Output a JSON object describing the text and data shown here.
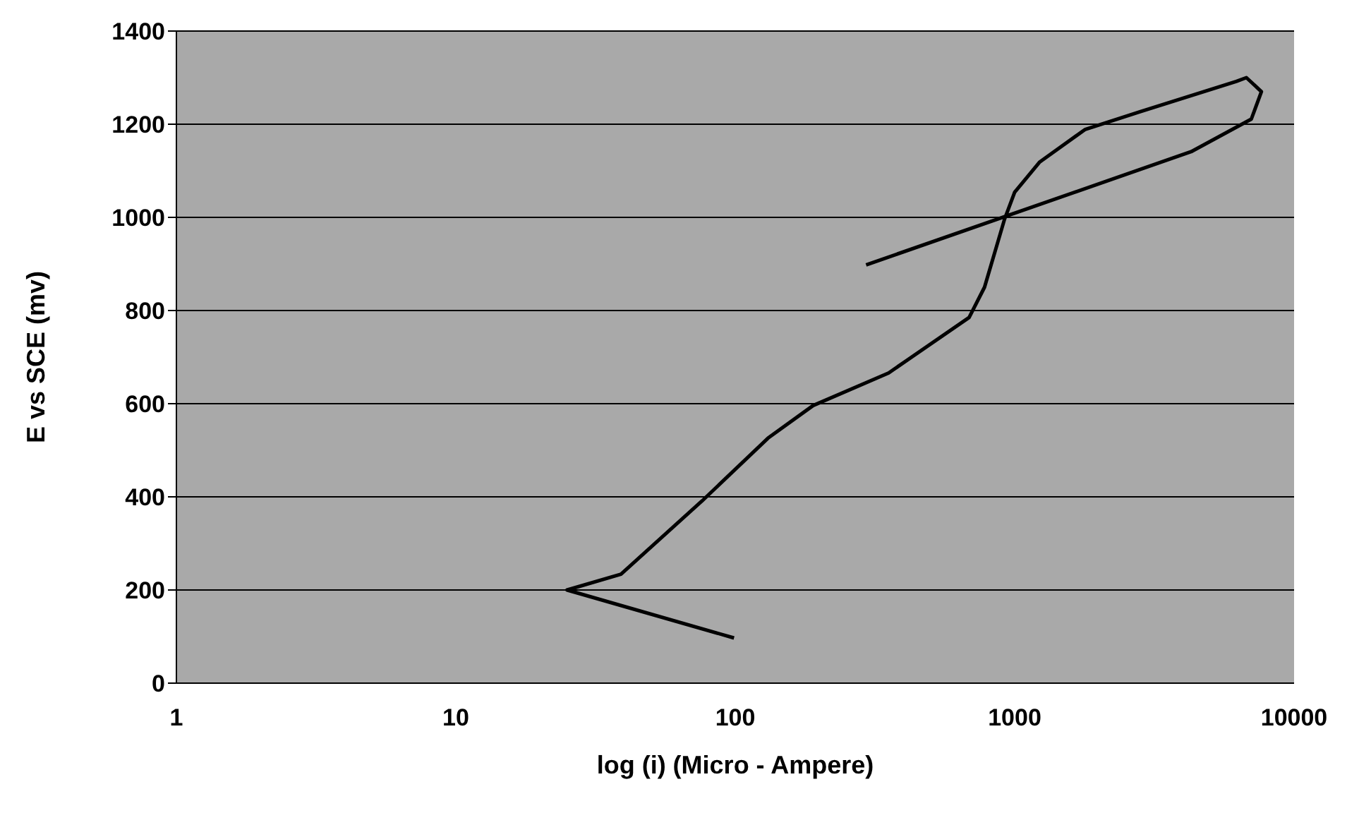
{
  "chart_data": {
    "type": "line",
    "xlabel": "log (i) (Micro - Ampere)",
    "ylabel": "E vs SCE (mv)",
    "log": "x",
    "xlim": [
      1,
      10000
    ],
    "xticks": [
      1,
      10,
      100,
      1000,
      10000
    ],
    "ylim": [
      0,
      1400
    ],
    "yticks": [
      0,
      200,
      400,
      600,
      800,
      1000,
      1200,
      1400
    ],
    "grid": "y",
    "marker": "none",
    "line_style": "solid",
    "series": [
      {
        "color": "#000000",
        "x": [
          99,
          25,
          39,
          76,
          131,
          190,
          354,
          687,
          780,
          920,
          1000,
          1230,
          1790,
          2820,
          6210,
          6750,
          7640,
          7030,
          4280,
          294
        ],
        "values": [
          97,
          200,
          234,
          391,
          526,
          596,
          666,
          785,
          850,
          996,
          1054,
          1119,
          1189,
          1227,
          1292,
          1300,
          1270,
          1211,
          1141,
          898
        ]
      }
    ]
  }
}
